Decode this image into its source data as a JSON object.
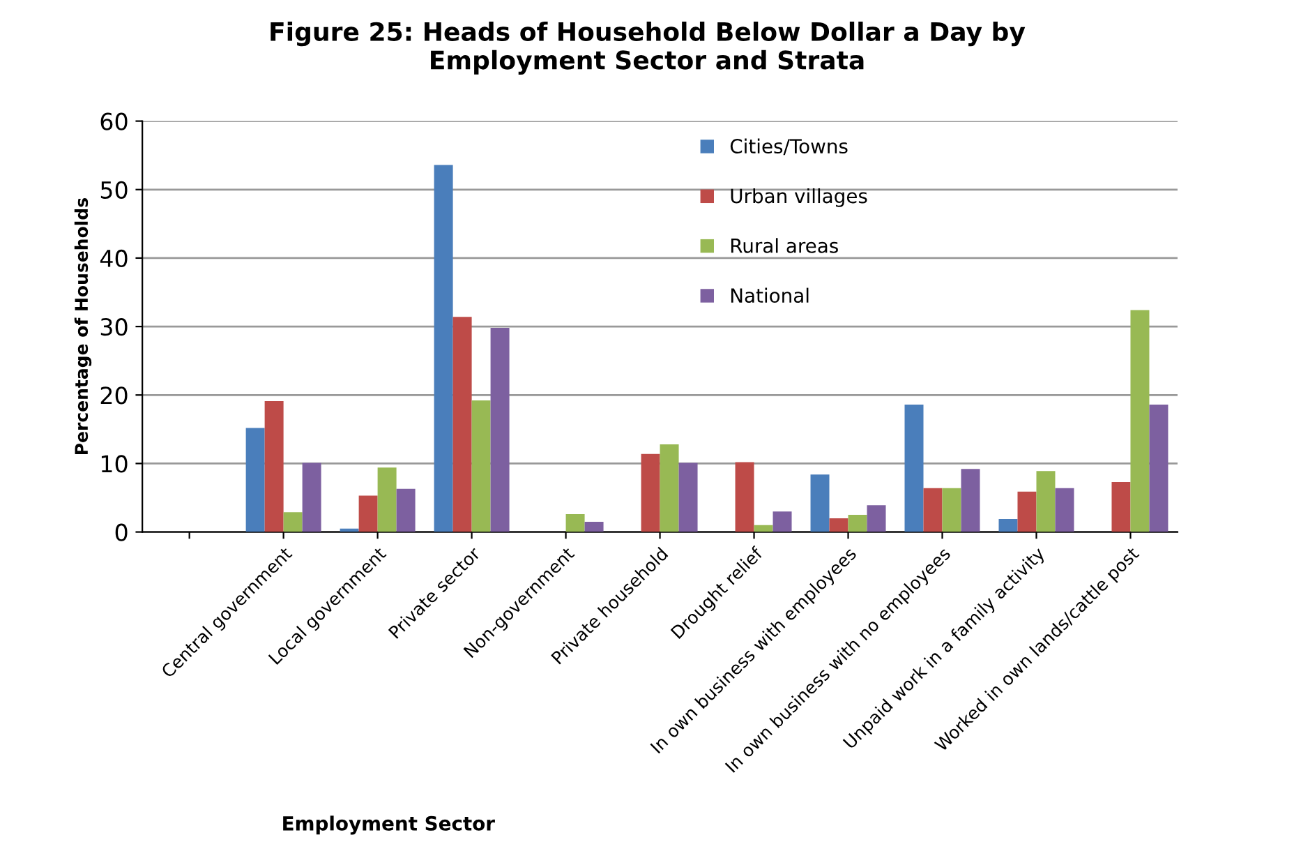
{
  "chart_data": {
    "type": "bar",
    "title": "Figure 25: Heads of Household Below Dollar a Day by\nEmployment Sector and Strata",
    "xlabel": "Employment Sector",
    "ylabel": "Percentage of Households",
    "categories": [
      null,
      "Central government",
      "Local government",
      "Private sector",
      "Non-government",
      "Private household",
      "Drought relief",
      "In own business with employees",
      "In own business with no employees",
      "Unpaid work in a family activity",
      "Worked in own lands/cattle post"
    ],
    "series": [
      {
        "name": "Cities/Towns",
        "color": "#4a7ebb",
        "values": [
          null,
          15.2,
          0.5,
          53.6,
          0,
          0,
          0,
          8.4,
          18.6,
          1.9,
          0
        ]
      },
      {
        "name": "Urban villages",
        "color": "#be4b48",
        "values": [
          null,
          19.1,
          5.3,
          31.4,
          0,
          11.4,
          10.2,
          2.0,
          6.4,
          5.9,
          7.3
        ]
      },
      {
        "name": "Rural areas",
        "color": "#98b954",
        "values": [
          null,
          2.9,
          9.4,
          19.2,
          2.6,
          12.8,
          1.0,
          2.5,
          6.4,
          8.9,
          32.4
        ]
      },
      {
        "name": "National",
        "color": "#7d60a0",
        "values": [
          null,
          10.1,
          6.3,
          29.8,
          1.5,
          10.1,
          3.0,
          3.9,
          9.2,
          6.4,
          18.6
        ]
      }
    ],
    "ylim": [
      0,
      60
    ],
    "yticks": [
      0,
      10,
      20,
      30,
      40,
      50,
      60
    ],
    "grid": "y",
    "legend": "top"
  }
}
